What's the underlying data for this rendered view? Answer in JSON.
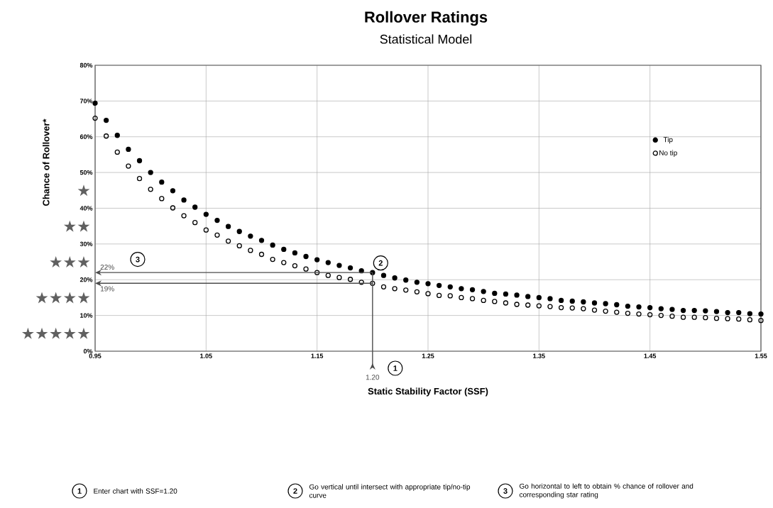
{
  "chart_data": {
    "type": "scatter",
    "title": "Rollover Ratings",
    "subtitle": "Statistical Model",
    "xlabel": "Static Stability Factor (SSF)",
    "ylabel": "Chance of Rollover*",
    "x": [
      0.95,
      0.96,
      0.97,
      0.98,
      0.99,
      1.0,
      1.01,
      1.02,
      1.03,
      1.04,
      1.05,
      1.06,
      1.07,
      1.08,
      1.09,
      1.1,
      1.11,
      1.12,
      1.13,
      1.14,
      1.15,
      1.16,
      1.17,
      1.18,
      1.19,
      1.2,
      1.21,
      1.22,
      1.23,
      1.24,
      1.25,
      1.26,
      1.27,
      1.28,
      1.29,
      1.3,
      1.31,
      1.32,
      1.33,
      1.34,
      1.35,
      1.36,
      1.37,
      1.38,
      1.39,
      1.4,
      1.41,
      1.42,
      1.43,
      1.44,
      1.45,
      1.46,
      1.47,
      1.48,
      1.49,
      1.5,
      1.51,
      1.52,
      1.53,
      1.54,
      1.55
    ],
    "series": [
      {
        "name": "Tip",
        "color": "#000000",
        "marker": "circle",
        "values": [
          69.4,
          64.6,
          60.4,
          56.5,
          53.3,
          50.0,
          47.3,
          44.9,
          42.3,
          40.3,
          38.3,
          36.6,
          34.9,
          33.5,
          32.2,
          31.0,
          29.7,
          28.5,
          27.5,
          26.5,
          25.6,
          24.8,
          24.0,
          23.3,
          22.5,
          22.0,
          21.2,
          20.5,
          19.9,
          19.3,
          18.9,
          18.4,
          18.0,
          17.5,
          17.2,
          16.7,
          16.2,
          16.0,
          15.7,
          15.3,
          15.0,
          14.7,
          14.2,
          14.0,
          13.8,
          13.5,
          13.3,
          13.0,
          12.6,
          12.4,
          12.2,
          11.9,
          11.7,
          11.4,
          11.4,
          11.3,
          11.1,
          10.8,
          10.8,
          10.5,
          10.4
        ]
      },
      {
        "name": "No tip",
        "color": "#000000",
        "marker": "open circle",
        "values": [
          65.2,
          60.2,
          55.7,
          51.8,
          48.3,
          45.3,
          42.7,
          40.1,
          37.9,
          36.0,
          33.9,
          32.5,
          30.8,
          29.5,
          28.2,
          27.1,
          25.7,
          24.8,
          23.9,
          23.0,
          22.0,
          21.2,
          20.6,
          20.1,
          19.3,
          19.0,
          18.0,
          17.5,
          17.1,
          16.6,
          16.1,
          15.6,
          15.5,
          15.0,
          14.7,
          14.2,
          13.9,
          13.5,
          13.1,
          12.9,
          12.7,
          12.5,
          12.2,
          12.1,
          11.9,
          11.5,
          11.2,
          10.9,
          10.6,
          10.4,
          10.2,
          10.0,
          9.8,
          9.5,
          9.5,
          9.4,
          9.2,
          9.1,
          9.0,
          8.8,
          8.6
        ]
      }
    ],
    "xlim": [
      0.95,
      1.55
    ],
    "ylim": [
      0,
      80
    ],
    "xticks": [
      0.95,
      1.05,
      1.15,
      1.25,
      1.35,
      1.45,
      1.55
    ],
    "yticks": [
      {
        "value": 0,
        "label": "0%"
      },
      {
        "value": 10,
        "label": "10%"
      },
      {
        "value": 20,
        "label": "20%"
      },
      {
        "value": 30,
        "label": "30%"
      },
      {
        "value": 40,
        "label": "40%"
      },
      {
        "value": 50,
        "label": "50%"
      },
      {
        "value": 60,
        "label": "60%"
      },
      {
        "value": 70,
        "label": "70%"
      },
      {
        "value": 80,
        "label": "80%"
      }
    ],
    "grid": true,
    "legend": "top right",
    "annotations": [
      "22%",
      "19%",
      {
        "text": "2",
        "x": 1.2,
        "y": 22
      },
      "1.20",
      "1",
      "3",
      "★",
      "★★",
      "★★★",
      "★★★★",
      "★★★★★",
      "1",
      "Enter chart with SSF=1.20",
      "2",
      "Go vertical until intersect with appropriate tip/no-tip curve",
      "3",
      "Go horizontal to left to obtain % chance of rollover and corresponding star rating"
    ]
  }
}
